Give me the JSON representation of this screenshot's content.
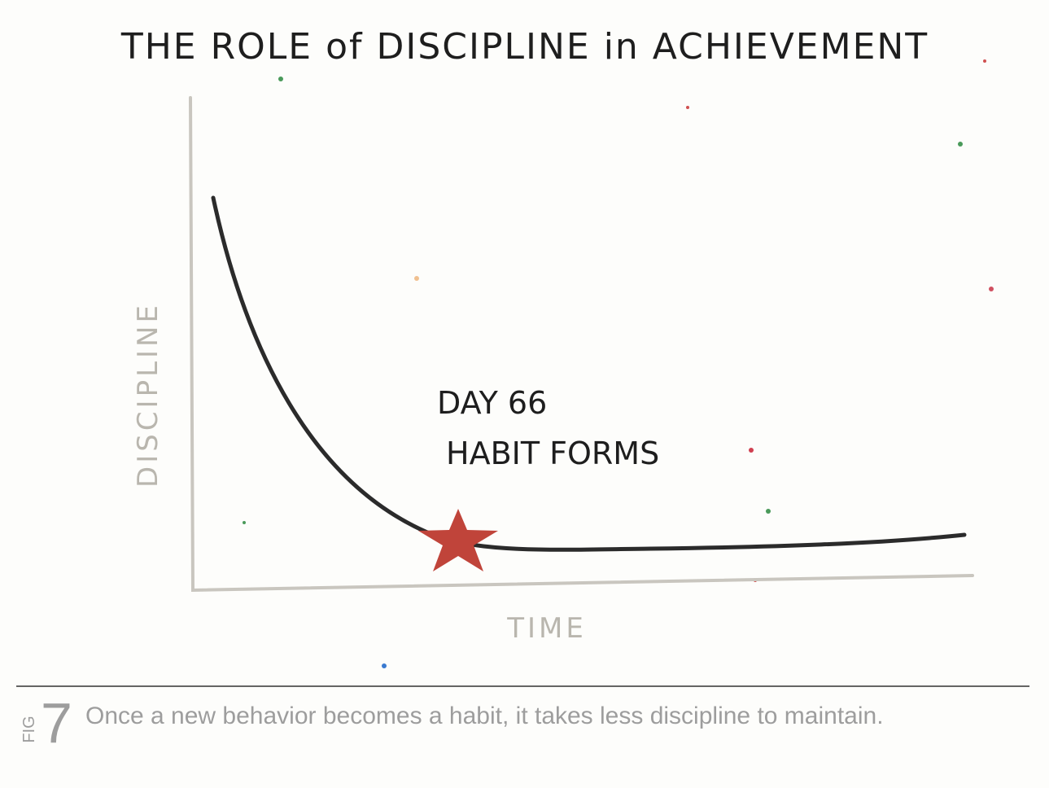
{
  "title": "THE ROLE of DISCIPLINE in ACHIEVEMENT",
  "axes": {
    "y_label": "DISCIPLINE",
    "x_label": "TIME"
  },
  "annotation": [
    "DAY 66",
    "HABIT FORMS"
  ],
  "figure": {
    "label": "FIG",
    "number": "7",
    "caption": "Once a new behavior becomes a habit, it takes less discipline to maintain."
  }
}
